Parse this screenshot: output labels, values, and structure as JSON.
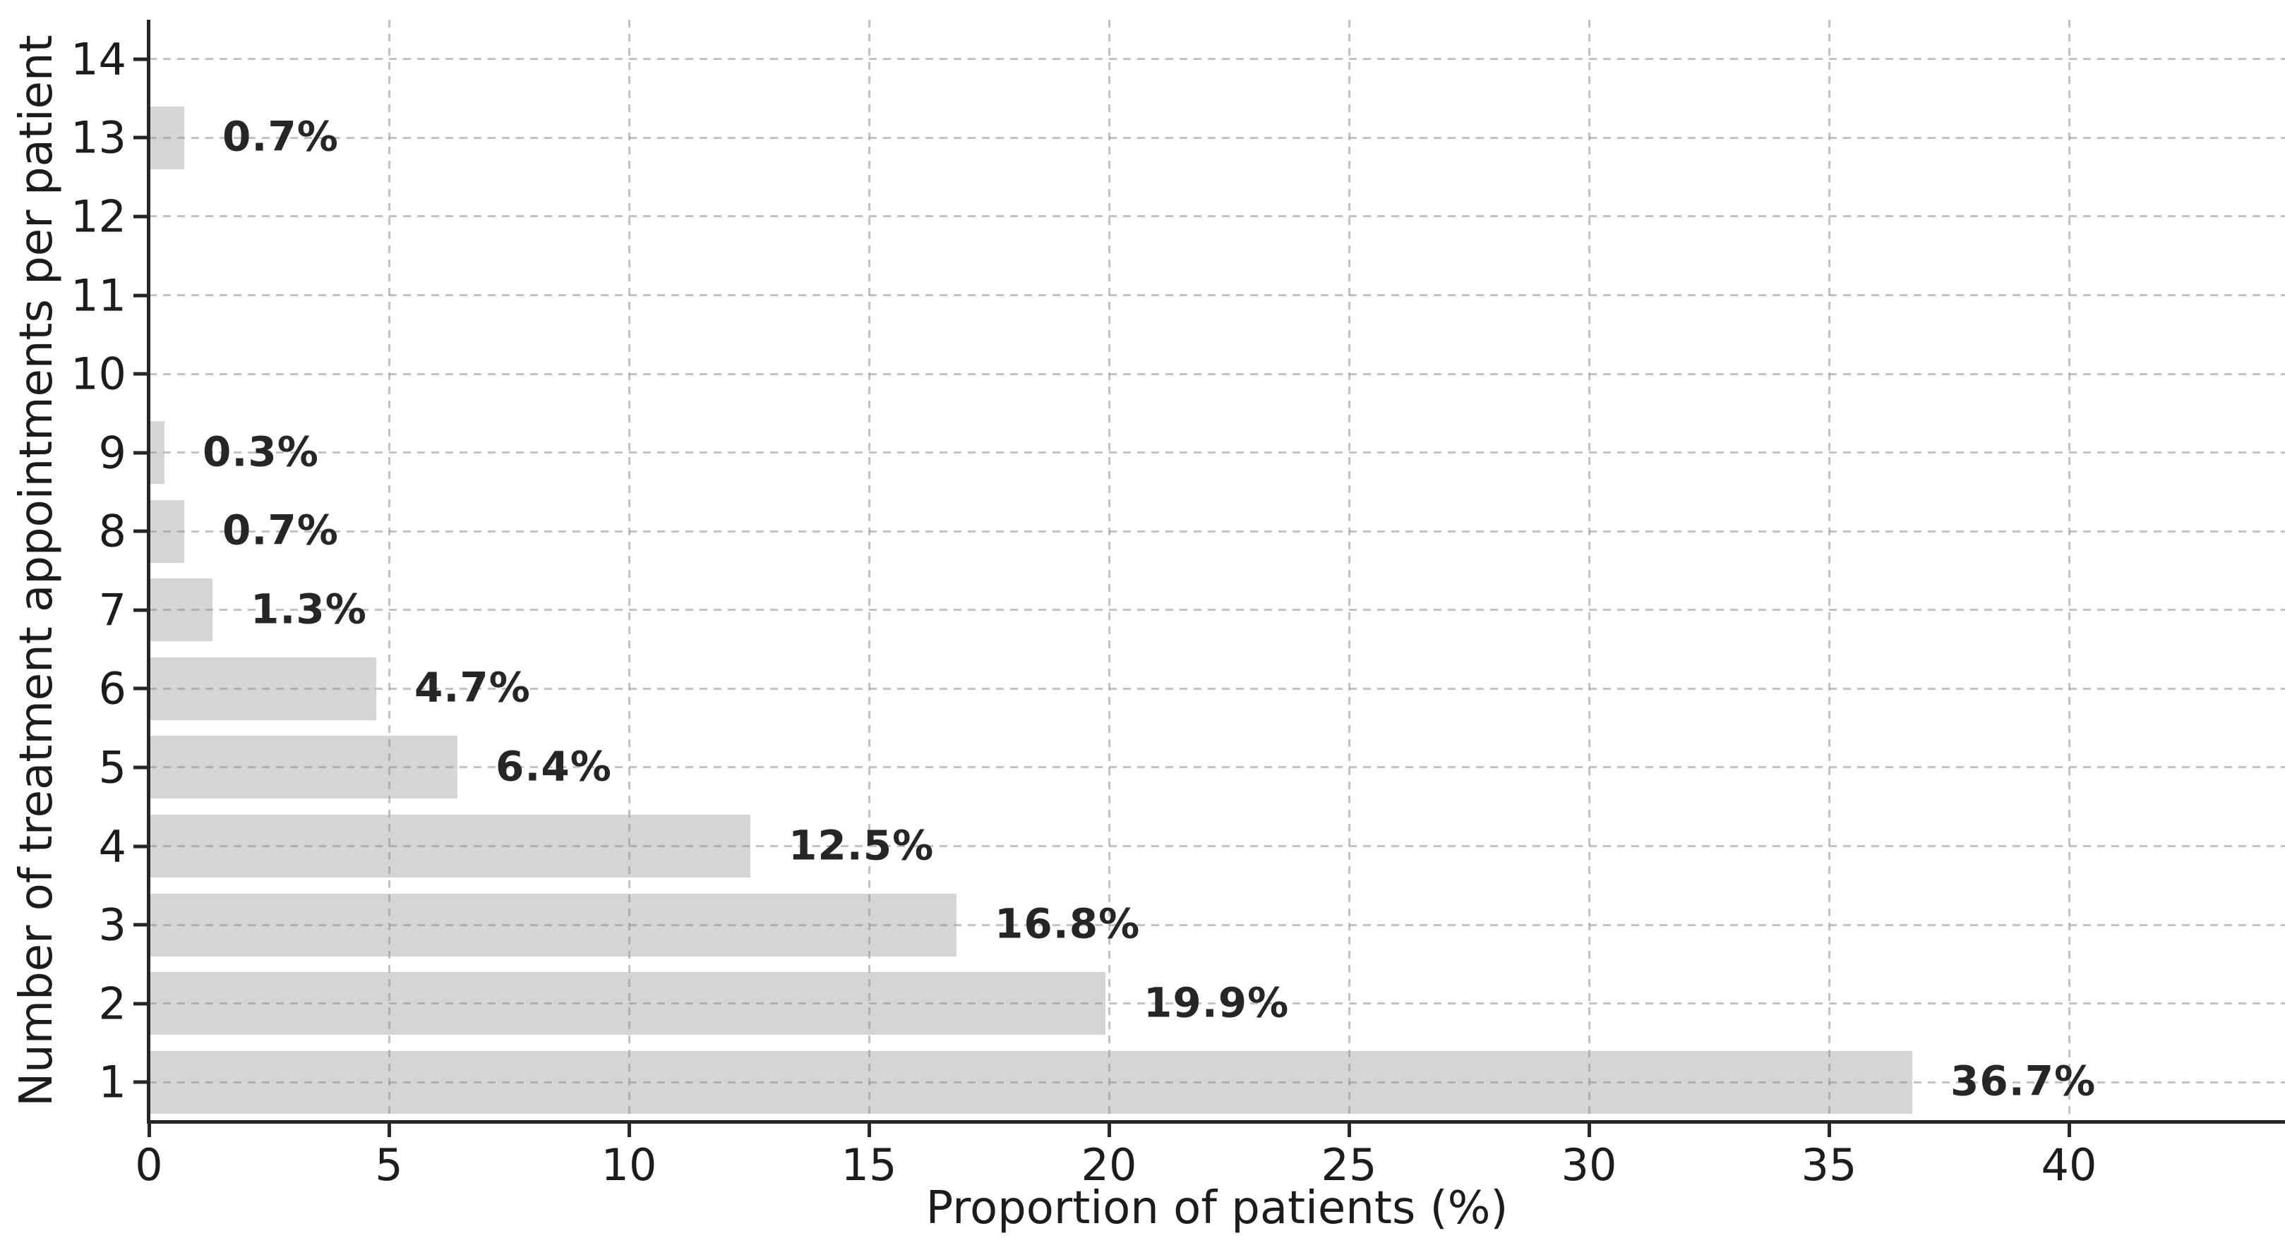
{
  "chart_data": {
    "type": "bar",
    "orientation": "horizontal",
    "title": "",
    "xlabel": "Proportion of patients (%)",
    "ylabel": "Number of treatment appointments per patient",
    "categories": [
      1,
      2,
      3,
      4,
      5,
      6,
      7,
      8,
      9,
      10,
      11,
      12,
      13,
      14
    ],
    "bars": [
      {
        "category": 1,
        "value": 36.7,
        "label": "36.7%"
      },
      {
        "category": 2,
        "value": 19.9,
        "label": "19.9%"
      },
      {
        "category": 3,
        "value": 16.8,
        "label": "16.8%"
      },
      {
        "category": 4,
        "value": 12.5,
        "label": "12.5%"
      },
      {
        "category": 5,
        "value": 6.4,
        "label": "6.4%"
      },
      {
        "category": 6,
        "value": 4.7,
        "label": "4.7%"
      },
      {
        "category": 7,
        "value": 1.3,
        "label": "1.3%"
      },
      {
        "category": 8,
        "value": 0.7,
        "label": "0.7%"
      },
      {
        "category": 9,
        "value": 0.3,
        "label": "0.3%"
      },
      {
        "category": 13,
        "value": 0.7,
        "label": "0.7%"
      }
    ],
    "x_ticks": [
      0,
      5,
      10,
      15,
      20,
      25,
      30,
      35,
      40
    ],
    "xlim": [
      0,
      44.5
    ],
    "ylim": [
      0.5,
      14.5
    ],
    "grid": "dashed, both axes, drawn over bars",
    "legend": "none",
    "bar_color": "#d5d5d5",
    "grid_color": "#c9c9c9",
    "spine_color": "#262626",
    "text_color": "#1c1c1c",
    "value_label_color": "#262626"
  }
}
